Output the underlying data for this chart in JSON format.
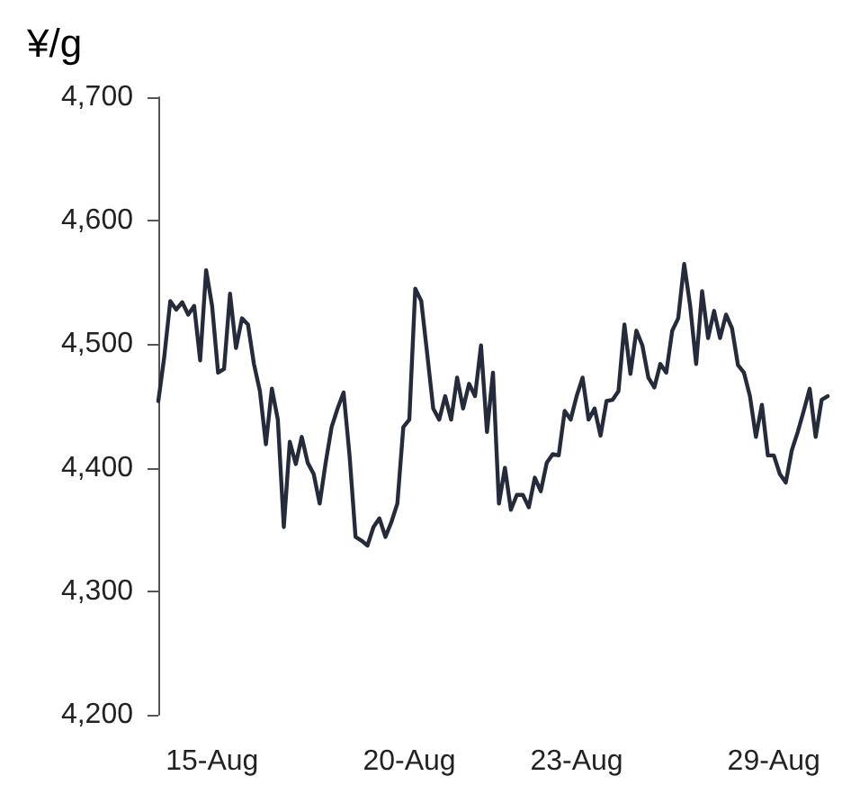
{
  "chart_data": {
    "type": "line",
    "ylabel": "¥/g",
    "categories": [
      null,
      null,
      null,
      null,
      null,
      null,
      null,
      null,
      null,
      "15-Aug",
      null,
      null,
      null,
      null,
      null,
      null,
      null,
      null,
      null,
      null,
      null,
      null,
      null,
      null,
      null,
      null,
      null,
      null,
      null,
      null,
      null,
      null,
      null,
      null,
      null,
      null,
      null,
      null,
      null,
      null,
      null,
      null,
      "20-Aug",
      null,
      null,
      null,
      null,
      null,
      null,
      null,
      null,
      null,
      null,
      null,
      null,
      null,
      null,
      null,
      null,
      null,
      null,
      null,
      null,
      null,
      null,
      null,
      null,
      null,
      null,
      null,
      "23-Aug",
      null,
      null,
      null,
      null,
      null,
      null,
      null,
      null,
      null,
      null,
      null,
      null,
      null,
      null,
      null,
      null,
      null,
      null,
      null,
      null,
      null,
      null,
      null,
      null,
      null,
      null,
      null,
      null,
      null,
      null,
      null,
      null,
      "29-Aug",
      null,
      null,
      null,
      null,
      null,
      null,
      null,
      null,
      null
    ],
    "series": [
      {
        "color": "#262b3b",
        "values": [
          4454,
          4490,
          4535,
          4528,
          4534,
          4524,
          4531,
          4487,
          4560,
          4531,
          4477,
          4480,
          4541,
          4497,
          4521,
          4516,
          4484,
          4462,
          4419,
          4464,
          4439,
          4352,
          4421,
          4403,
          4425,
          4404,
          4395,
          4371,
          4404,
          4433,
          4448,
          4461,
          4410,
          4344,
          4341,
          4337,
          4352,
          4359,
          4344,
          4356,
          4371,
          4433,
          4439,
          4545,
          4535,
          4492,
          4448,
          4439,
          4458,
          4439,
          4473,
          4448,
          4468,
          4458,
          4499,
          4429,
          4477,
          4371,
          4400,
          4366,
          4378,
          4378,
          4368,
          4392,
          4381,
          4404,
          4411,
          4410,
          4446,
          4439,
          4458,
          4473,
          4439,
          4448,
          4426,
          4454,
          4455,
          4462,
          4516,
          4476,
          4511,
          4499,
          4473,
          4465,
          4484,
          4477,
          4511,
          4521,
          4565,
          4531,
          4484,
          4543,
          4505,
          4527,
          4505,
          4524,
          4513,
          4483,
          4477,
          4458,
          4425,
          4451,
          4410,
          4410,
          4395,
          4388,
          4414,
          4429,
          4446,
          4464,
          4425,
          4455,
          4458
        ]
      }
    ],
    "ylim": [
      4200,
      4700
    ],
    "yticks": [
      {
        "value": 4200,
        "label": "4,200"
      },
      {
        "value": 4300,
        "label": "4,300"
      },
      {
        "value": 4400,
        "label": "4,400"
      },
      {
        "value": 4500,
        "label": "4,500"
      },
      {
        "value": 4600,
        "label": "4,600"
      },
      {
        "value": 4700,
        "label": "4,700"
      }
    ],
    "grid": false,
    "marker": "none",
    "line_style": "solid"
  }
}
